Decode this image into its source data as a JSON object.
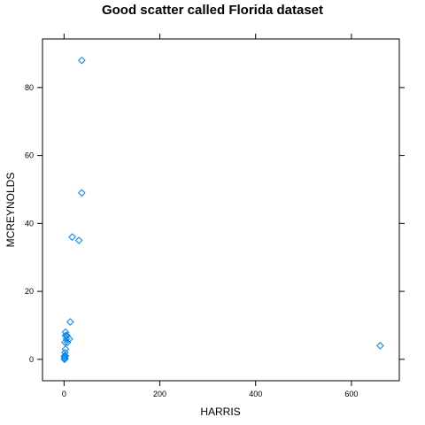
{
  "chart_data": {
    "type": "scatter",
    "title": "Good scatter called Florida dataset",
    "xlabel": "HARRIS",
    "ylabel": "MCREYNOLDS",
    "xlim": [
      -45,
      700
    ],
    "ylim": [
      -6.3,
      94.3
    ],
    "xticks": [
      0,
      200,
      400,
      600
    ],
    "yticks": [
      0,
      20,
      40,
      60,
      80
    ],
    "grid": false,
    "legend": "none",
    "marker": "diamond",
    "color": "#0080ff",
    "points": [
      {
        "x": 37,
        "y": 88
      },
      {
        "x": 37,
        "y": 49
      },
      {
        "x": 17,
        "y": 36
      },
      {
        "x": 31,
        "y": 35
      },
      {
        "x": 13,
        "y": 11
      },
      {
        "x": 3,
        "y": 8
      },
      {
        "x": 3,
        "y": 7
      },
      {
        "x": 6,
        "y": 7
      },
      {
        "x": 5,
        "y": 6
      },
      {
        "x": 11,
        "y": 6
      },
      {
        "x": 2,
        "y": 5
      },
      {
        "x": 7,
        "y": 5
      },
      {
        "x": 3,
        "y": 3
      },
      {
        "x": 2,
        "y": 2
      },
      {
        "x": 1,
        "y": 1
      },
      {
        "x": 3,
        "y": 1
      },
      {
        "x": 1,
        "y": 0.5
      },
      {
        "x": 2,
        "y": 0.2
      },
      {
        "x": 1,
        "y": 0
      },
      {
        "x": 660,
        "y": 4
      }
    ]
  }
}
